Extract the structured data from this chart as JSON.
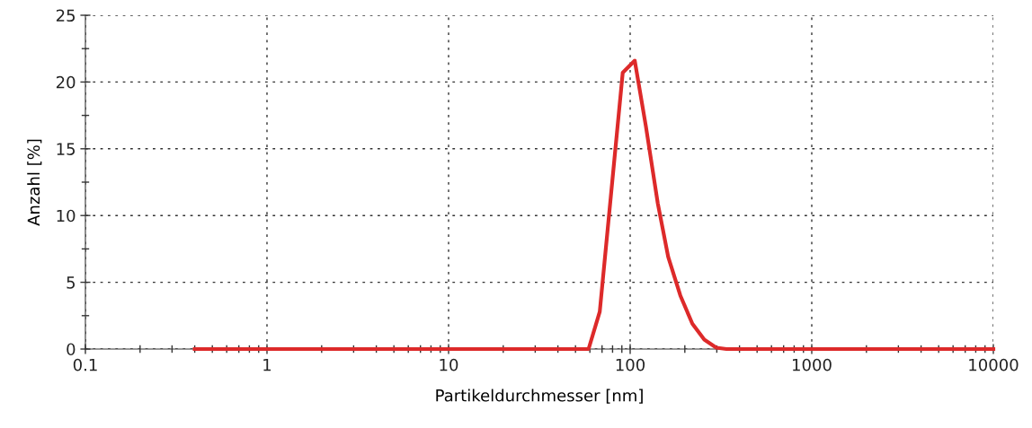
{
  "chart_data": {
    "type": "line",
    "xlabel": "Partikeldurchmesser [nm]",
    "ylabel": "Anzahl [%]",
    "log": "x",
    "grid": true,
    "marker": "none",
    "line_style": "solid",
    "xlim": [
      0.1,
      10000
    ],
    "xticks": [
      0.1,
      1,
      10,
      100,
      1000,
      10000
    ],
    "ylim": [
      0,
      25
    ],
    "yticks": [
      0,
      5,
      10,
      15,
      20,
      25
    ],
    "series": [
      {
        "color": "#dd2a2a",
        "x": [
          0.4,
          59,
          68,
          91,
          106,
          122,
          142,
          162,
          189,
          220,
          256,
          298,
          339,
          10000
        ],
        "values": [
          0,
          0,
          2.8,
          20.7,
          21.6,
          16.7,
          10.9,
          6.9,
          4.0,
          1.9,
          0.7,
          0.1,
          0,
          0
        ]
      }
    ]
  }
}
